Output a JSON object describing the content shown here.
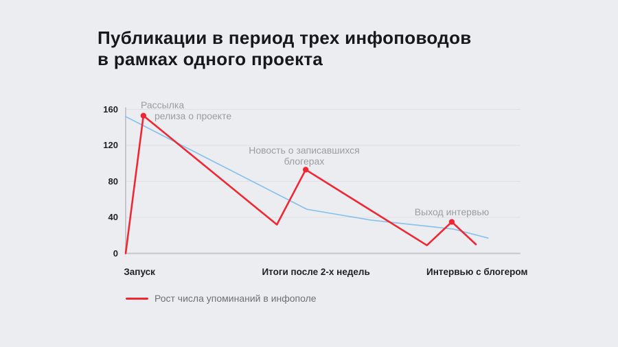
{
  "title": {
    "line1": "Публикации в период трех инфоповодов",
    "line2": "в рамках одного проекта"
  },
  "colors": {
    "background": "#ecedf1",
    "title_text": "#17181b",
    "red_line": "#ef2733",
    "blue_line": "#88c2ec",
    "grid": "#dddfe3",
    "axis": "#c5c7cc",
    "tick_label": "#202126",
    "annotation_text": "#9b9ca1",
    "legend_text": "#6e6f74"
  },
  "chart_data": {
    "type": "line",
    "title": "Публикации в период трех инфоповодов в рамках одного проекта",
    "ylim": [
      0,
      160
    ],
    "yticks": [
      0,
      40,
      80,
      120,
      160
    ],
    "grid": "horizontal",
    "legend_position": "bottom-left",
    "x_categories": [
      {
        "label": "Запуск",
        "x": 0.035
      },
      {
        "label": "Итоги после 2-х недель",
        "x": 0.482
      },
      {
        "label": "Интервью с блогером",
        "x": 0.89
      }
    ],
    "series": [
      {
        "name": "Рост числа упоминаний в инфополе",
        "color": "#ef2733",
        "x": [
          0,
          0.045,
          0.383,
          0.456,
          0.763,
          0.826,
          0.887
        ],
        "values": [
          0,
          153,
          32,
          93,
          9,
          35,
          10
        ],
        "markers": [
          {
            "x": 0.045,
            "y": 153
          },
          {
            "x": 0.456,
            "y": 93
          },
          {
            "x": 0.826,
            "y": 35
          }
        ]
      },
      {
        "color": "#88c2ec",
        "x": [
          0,
          0.459,
          0.621,
          0.83,
          0.918
        ],
        "values": [
          152,
          49,
          37,
          27,
          17
        ],
        "markers": []
      }
    ],
    "annotations": [
      {
        "line1": "Рассылка",
        "line2": "релиза о проекте",
        "target_value": 153
      },
      {
        "line1": "Новость о записавшихся",
        "line2": "блогерах",
        "target_value": 93
      },
      {
        "line1": "Выход интервью",
        "target_value": 35
      }
    ],
    "legend": {
      "label": "Рост числа упоминаний в инфополе",
      "color": "#ef2733"
    }
  }
}
